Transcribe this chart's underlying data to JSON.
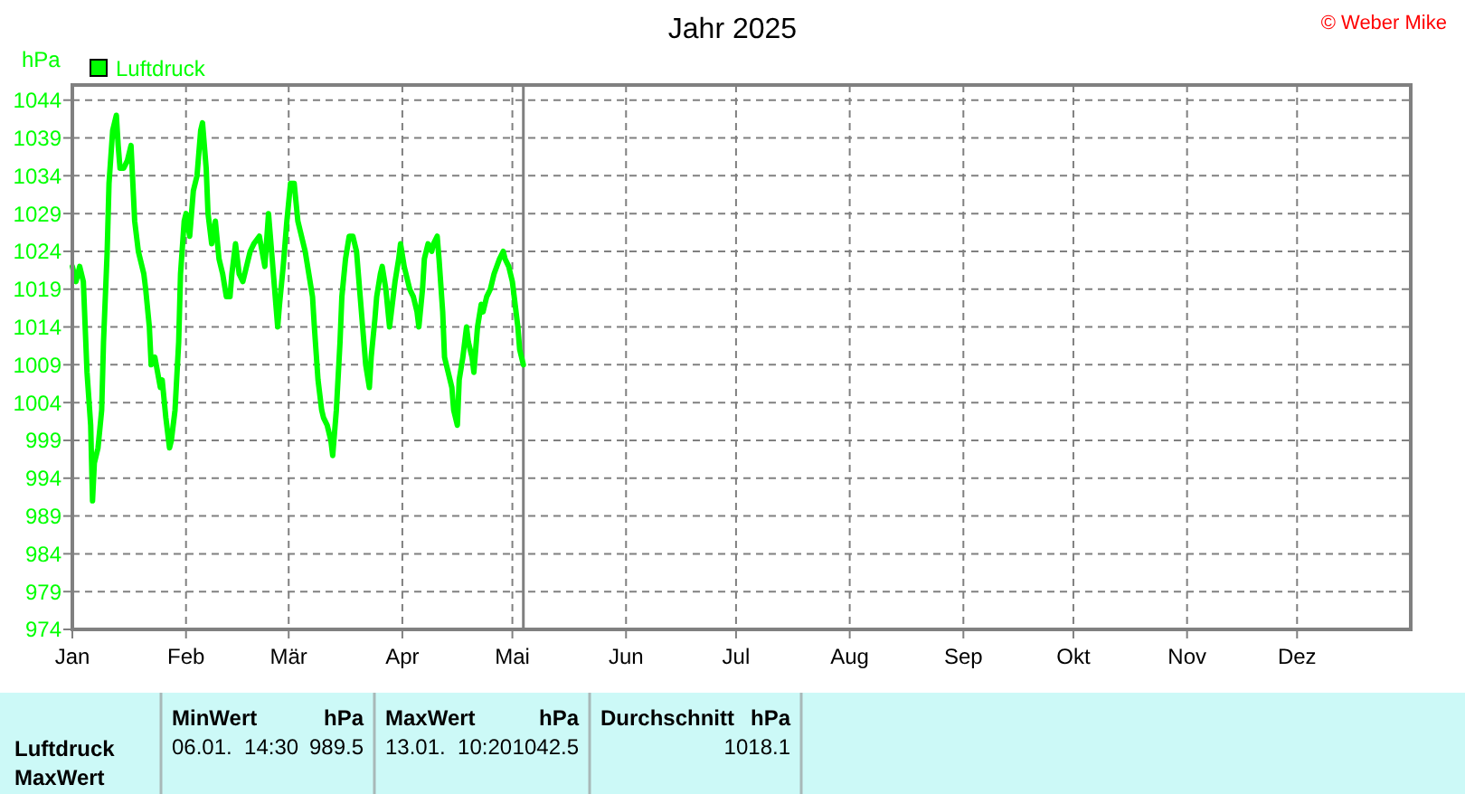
{
  "chart_data": {
    "type": "line",
    "title": "Jahr 2025",
    "ylabel": "hPa",
    "annotations": [
      "© Weber Mike",
      "Luftdruck",
      "MaxWert",
      "MinWert",
      "hPa",
      "06.01.  14:30",
      "989.5",
      "MaxWert",
      "hPa",
      "13.01.  10:20",
      "1042.5",
      "Durchschnitt",
      "hPa",
      "1018.1"
    ],
    "xlim": [
      "2025-01-01",
      "2026-01-01"
    ],
    "xticks": [
      {
        "value": "2025-01-01",
        "label": "Jan"
      },
      {
        "value": "2025-02-01",
        "label": "Feb"
      },
      {
        "value": "2025-03-01",
        "label": "Mär"
      },
      {
        "value": "2025-04-01",
        "label": "Apr"
      },
      {
        "value": "2025-05-01",
        "label": "Mai"
      },
      {
        "value": "2025-06-01",
        "label": "Jun"
      },
      {
        "value": "2025-07-01",
        "label": "Jul"
      },
      {
        "value": "2025-08-01",
        "label": "Aug"
      },
      {
        "value": "2025-09-01",
        "label": "Sep"
      },
      {
        "value": "2025-10-01",
        "label": "Okt"
      },
      {
        "value": "2025-11-01",
        "label": "Nov"
      },
      {
        "value": "2025-12-01",
        "label": "Dez"
      }
    ],
    "ylim": [
      974,
      1046
    ],
    "yticks": [
      974,
      979,
      984,
      989,
      994,
      999,
      1004,
      1009,
      1014,
      1019,
      1024,
      1029,
      1034,
      1039,
      1044
    ],
    "grid": true,
    "legend": "top left",
    "ref_lines": [
      {
        "axis": "x",
        "value": "2025-05-04",
        "color": "#808080"
      }
    ],
    "x": [
      "2025-01-01",
      "2025-01-02",
      "2025-01-03",
      "2025-01-04",
      "2025-01-05",
      "2025-01-06",
      "2025-01-06T12:00",
      "2025-01-07",
      "2025-01-08",
      "2025-01-09",
      "2025-01-09T12:00",
      "2025-01-10T12:00",
      "2025-01-11",
      "2025-01-12",
      "2025-01-13",
      "2025-01-13T12:00",
      "2025-01-14",
      "2025-01-15",
      "2025-01-16",
      "2025-01-17",
      "2025-01-18",
      "2025-01-19",
      "2025-01-20T12:00",
      "2025-01-21",
      "2025-01-22",
      "2025-01-22T12:00",
      "2025-01-23T12:00",
      "2025-01-25",
      "2025-01-25T12:00",
      "2025-01-26T12:00",
      "2025-01-27T12:00",
      "2025-01-28",
      "2025-01-29",
      "2025-01-30",
      "2025-01-30T12:00",
      "2025-01-31T12:00",
      "2025-02-01",
      "2025-02-02",
      "2025-02-03",
      "2025-02-04",
      "2025-02-05",
      "2025-02-05T12:00",
      "2025-02-06T12:00",
      "2025-02-07",
      "2025-02-08",
      "2025-02-09",
      "2025-02-10",
      "2025-02-11",
      "2025-02-12",
      "2025-02-13",
      "2025-02-13T12:00",
      "2025-02-14T12:00",
      "2025-02-15T12:00",
      "2025-02-16T12:00",
      "2025-02-17T12:00",
      "2025-02-18T12:00",
      "2025-02-19T12:00",
      "2025-02-21",
      "2025-02-22T12:00",
      "2025-02-23T12:00",
      "2025-02-24T12:00",
      "2025-02-25",
      "2025-02-26",
      "2025-02-26T12:00",
      "2025-02-27T12:00",
      "2025-02-28T12:00",
      "2025-03-01T12:00",
      "2025-03-02T12:00",
      "2025-03-03T12:00",
      "2025-03-04T12:00",
      "2025-03-05T12:00",
      "2025-03-06T12:00",
      "2025-03-07T12:00",
      "2025-03-08",
      "2025-03-09",
      "2025-03-10",
      "2025-03-10T12:00",
      "2025-03-11T12:00",
      "2025-03-12T12:00",
      "2025-03-13",
      "2025-03-14",
      "2025-03-15",
      "2025-03-15T12:00",
      "2025-03-16T12:00",
      "2025-03-17T12:00",
      "2025-03-18T12:00",
      "2025-03-19T12:00",
      "2025-03-20T12:00",
      "2025-03-22",
      "2025-03-23",
      "2025-03-23T12:00",
      "2025-03-24T12:00",
      "2025-03-25",
      "2025-03-26",
      "2025-03-26T12:00",
      "2025-03-27T12:00",
      "2025-03-28T12:00",
      "2025-03-29",
      "2025-03-30",
      "2025-03-31",
      "2025-03-31T12:00",
      "2025-04-01T12:00",
      "2025-04-02T12:00",
      "2025-04-03",
      "2025-04-04",
      "2025-04-05",
      "2025-04-05T12:00",
      "2025-04-06T12:00",
      "2025-04-07",
      "2025-04-08",
      "2025-04-09",
      "2025-04-09T12:00",
      "2025-04-10T12:00",
      "2025-04-11",
      "2025-04-12",
      "2025-04-12T12:00",
      "2025-04-13T12:00",
      "2025-04-14T12:00",
      "2025-04-15",
      "2025-04-16",
      "2025-04-16T12:00",
      "2025-04-17T12:00",
      "2025-04-18T12:00",
      "2025-04-19",
      "2025-04-20",
      "2025-04-20T12:00",
      "2025-04-21T12:00",
      "2025-04-22T12:00",
      "2025-04-23",
      "2025-04-24",
      "2025-04-25",
      "2025-04-26",
      "2025-04-27T12:00",
      "2025-04-28T12:00",
      "2025-04-29",
      "2025-04-30",
      "2025-05-01",
      "2025-05-01T12:00",
      "2025-05-02T12:00",
      "2025-05-03",
      "2025-05-04"
    ],
    "series": [
      {
        "name": "Luftdruck",
        "color": "#00ff00",
        "values": [
          1022,
          1020,
          1022,
          1020,
          1008,
          1001,
          991,
          996,
          998,
          1003,
          1012,
          1024,
          1033,
          1040,
          1042,
          1038,
          1035,
          1035,
          1036,
          1038,
          1028,
          1024,
          1021,
          1019,
          1014,
          1009,
          1010,
          1006,
          1007,
          1002,
          998,
          999,
          1003,
          1012,
          1021,
          1028,
          1029,
          1026,
          1032,
          1034,
          1040,
          1041,
          1035,
          1029,
          1025,
          1028,
          1023,
          1021,
          1018,
          1018,
          1021,
          1025,
          1021,
          1020,
          1022,
          1024,
          1025,
          1026,
          1022,
          1029,
          1023,
          1020,
          1014,
          1017,
          1022,
          1028,
          1033,
          1033,
          1028,
          1026,
          1024,
          1021,
          1018,
          1014,
          1007,
          1003,
          1002,
          1001,
          999,
          997,
          1003,
          1012,
          1018,
          1023,
          1026,
          1026,
          1024,
          1018,
          1009,
          1006,
          1010,
          1015,
          1018,
          1021,
          1022,
          1019,
          1014,
          1016,
          1020,
          1023,
          1025,
          1022,
          1020,
          1019,
          1018,
          1016,
          1014,
          1019,
          1023,
          1025,
          1024,
          1025,
          1026,
          1023,
          1016,
          1010,
          1008,
          1006,
          1003,
          1001,
          1007,
          1010,
          1014,
          1012,
          1010,
          1008,
          1014,
          1017,
          1016,
          1018,
          1019,
          1021,
          1023,
          1024,
          1023,
          1022,
          1020,
          1018,
          1014,
          1011,
          1009
        ]
      }
    ]
  }
}
